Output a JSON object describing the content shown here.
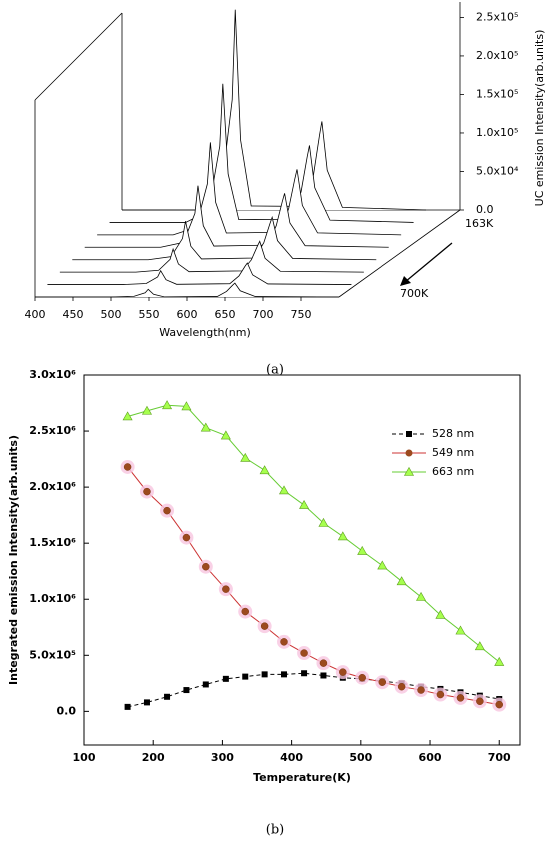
{
  "chart_data": [
    {
      "type": "waterfall",
      "xlabel": "Wavelength(nm)",
      "zlabel": "UC emission Intensity(arb.units)",
      "caption": "(a)",
      "depth_labels": [
        "163K",
        "700K"
      ],
      "x": [
        400,
        500,
        530,
        545,
        549,
        556,
        570,
        640,
        652,
        660,
        663,
        670,
        690,
        800
      ],
      "traces": [
        [
          0,
          0,
          20800,
          143000,
          260000,
          91000,
          5200,
          4600,
          46000,
          97750,
          115000,
          51750,
          3450,
          0
        ],
        [
          0,
          0,
          14400,
          99000,
          180000,
          63000,
          3600,
          4000,
          40000,
          85000,
          100000,
          45000,
          3000,
          0
        ],
        [
          0,
          0,
          9600,
          66000,
          120000,
          42000,
          2400,
          3400,
          34000,
          72250,
          85000,
          38250,
          2550,
          0
        ],
        [
          0,
          0,
          6400,
          44000,
          80000,
          28000,
          1600,
          2800,
          28000,
          59500,
          70000,
          31500,
          2100,
          0
        ],
        [
          0,
          0,
          4000,
          27500,
          50000,
          17500,
          1000,
          2200,
          22000,
          46750,
          55000,
          24750,
          1650,
          0
        ],
        [
          0,
          0,
          2400,
          16500,
          30000,
          10500,
          600,
          1600,
          16000,
          34000,
          40000,
          18000,
          1200,
          0
        ],
        [
          0,
          0,
          1440,
          9900,
          18000,
          6300,
          360,
          1120,
          11200,
          23800,
          28000,
          12600,
          840,
          0
        ],
        [
          0,
          0,
          800,
          5500,
          10000,
          3500,
          200,
          720,
          7200,
          15300,
          18000,
          8100,
          540,
          0
        ]
      ],
      "xlim": [
        400,
        800
      ],
      "xticks": [
        400,
        450,
        500,
        550,
        600,
        650,
        700,
        750
      ],
      "zlim": [
        0,
        270000
      ],
      "zticks": [
        {
          "value": 0,
          "label": "0.0"
        },
        {
          "value": 50000,
          "label": "5.0x10⁴"
        },
        {
          "value": 100000,
          "label": "1.0x10⁵"
        },
        {
          "value": 150000,
          "label": "1.5x10⁵"
        },
        {
          "value": 200000,
          "label": "2.0x10⁵"
        },
        {
          "value": 250000,
          "label": "2.5x10⁵"
        }
      ],
      "color": "#000000"
    },
    {
      "type": "line",
      "xlabel": "Temperature(K)",
      "ylabel": "Integrated emission Intensity(arb.units)",
      "caption": "(b)",
      "x": [
        163,
        191,
        220,
        248,
        276,
        305,
        333,
        361,
        389,
        418,
        446,
        474,
        502,
        531,
        559,
        587,
        615,
        644,
        672,
        700
      ],
      "series": [
        {
          "name": "528 nm",
          "color": "#000000",
          "marker": "square",
          "dashed": true,
          "values": [
            40000,
            80000,
            130000,
            190000,
            240000,
            290000,
            310000,
            330000,
            330000,
            340000,
            320000,
            300000,
            290000,
            270000,
            250000,
            220000,
            200000,
            170000,
            140000,
            110000
          ]
        },
        {
          "name": "549 nm",
          "color": "#cc3333",
          "marker": "circle",
          "dashed": false,
          "values": [
            2180000,
            1960000,
            1790000,
            1550000,
            1290000,
            1090000,
            890000,
            760000,
            620000,
            520000,
            430000,
            350000,
            300000,
            260000,
            220000,
            190000,
            150000,
            120000,
            90000,
            60000
          ]
        },
        {
          "name": "663 nm",
          "color": "#66cc33",
          "marker": "triangle",
          "dashed": false,
          "values": [
            2630000,
            2680000,
            2730000,
            2720000,
            2530000,
            2460000,
            2260000,
            2150000,
            1970000,
            1840000,
            1680000,
            1560000,
            1430000,
            1300000,
            1160000,
            1020000,
            860000,
            720000,
            580000,
            440000
          ]
        }
      ],
      "xlim": [
        100,
        730
      ],
      "xticks": [
        100,
        200,
        300,
        400,
        500,
        600,
        700
      ],
      "ylim": [
        -300000,
        3000000
      ],
      "yticks": [
        {
          "value": 0,
          "label": "0.0"
        },
        {
          "value": 500000,
          "label": "5.0x10⁵"
        },
        {
          "value": 1000000,
          "label": "1.0x10⁶"
        },
        {
          "value": 1500000,
          "label": "1.5x10⁶"
        },
        {
          "value": 2000000,
          "label": "2.0x10⁶"
        },
        {
          "value": 2500000,
          "label": "2.5x10⁶"
        },
        {
          "value": 3000000,
          "label": "3.0x10⁶"
        }
      ],
      "legend": "upper right"
    }
  ]
}
